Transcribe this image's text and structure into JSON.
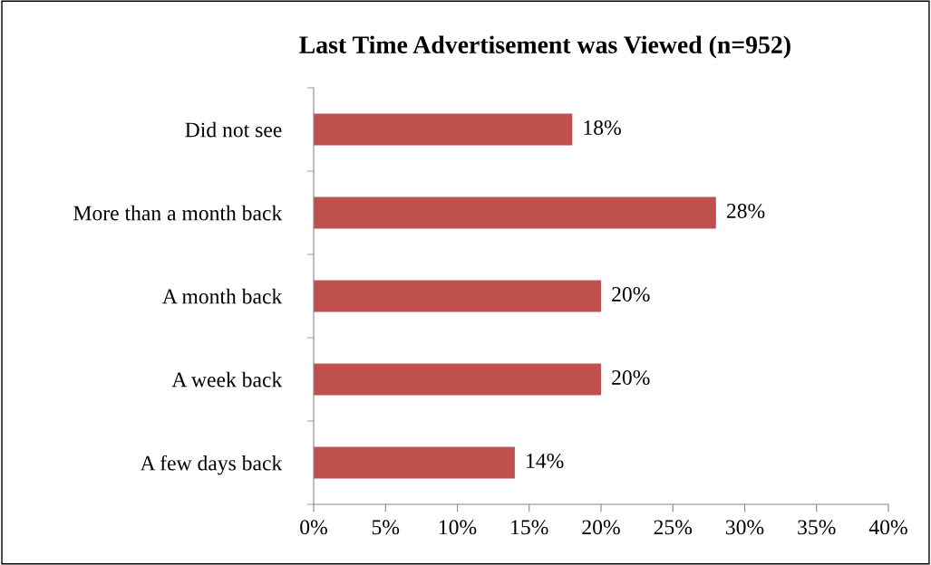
{
  "chart_data": {
    "type": "bar",
    "orientation": "horizontal",
    "title": "Last Time Advertisement was Viewed (n=952)",
    "categories": [
      "Did not see",
      "More than a month back",
      "A month back",
      "A week back",
      "A few days back"
    ],
    "values": [
      18,
      28,
      20,
      20,
      14
    ],
    "value_labels": [
      "18%",
      "28%",
      "20%",
      "20%",
      "14%"
    ],
    "color": "#c0504d",
    "xlim": [
      0,
      40
    ],
    "xticks": [
      {
        "value": 0,
        "label": "0%"
      },
      {
        "value": 5,
        "label": "5%"
      },
      {
        "value": 10,
        "label": "10%"
      },
      {
        "value": 15,
        "label": "15%"
      },
      {
        "value": 20,
        "label": "20%"
      },
      {
        "value": 25,
        "label": "25%"
      },
      {
        "value": 30,
        "label": "30%"
      },
      {
        "value": 35,
        "label": "35%"
      },
      {
        "value": 40,
        "label": "40%"
      }
    ],
    "grid": false,
    "legend": false
  }
}
